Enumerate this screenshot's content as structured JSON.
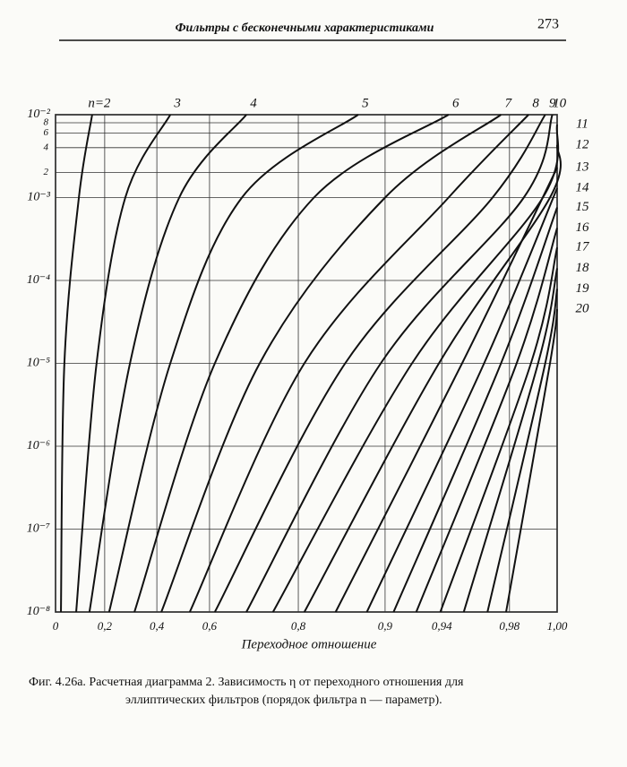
{
  "header": {
    "title": "Фильтры с бесконечными характеристиками",
    "page": "273"
  },
  "caption": [
    "Фиг. 4.26а. Расчетная диаграмма 2. Зависимость η от переходного отношения для",
    "эллиптических фильтров (порядок фильтра n — параметр)."
  ],
  "chart_data": {
    "type": "line",
    "xlabel": "Переходное отношение",
    "color": "#111111",
    "grid": true,
    "ylog": true,
    "xlim": [
      0,
      1
    ],
    "xticks": [
      0,
      {
        "value": 0.2,
        "label": "0,2"
      },
      {
        "value": 0.4,
        "label": "0,4"
      },
      {
        "value": 0.6,
        "label": "0,6"
      },
      {
        "value": 0.8,
        "label": "0,8"
      },
      {
        "value": 0.9,
        "label": "0,9"
      },
      {
        "value": 0.94,
        "label": "0,94"
      },
      {
        "value": 0.98,
        "label": "0,98"
      },
      {
        "value": 1,
        "label": "1,00"
      }
    ],
    "ylim": [
      1e-08,
      0.01
    ],
    "yticks": [
      {
        "value": 1e-08,
        "label": "10⁻⁸"
      },
      {
        "value": 1e-07,
        "label": "10⁻⁷"
      },
      {
        "value": 1e-06,
        "label": "10⁻⁶"
      },
      {
        "value": 1e-05,
        "label": "10⁻⁵"
      },
      {
        "value": 0.0001,
        "label": "10⁻⁴"
      },
      {
        "value": 0.001,
        "label": "10⁻³"
      },
      {
        "value": 0.002,
        "label": "2"
      },
      {
        "value": 0.004,
        "label": "4"
      },
      {
        "value": 0.006,
        "label": "6"
      },
      {
        "value": 0.008,
        "label": "8"
      },
      {
        "value": 0.01,
        "label": "10⁻²"
      }
    ],
    "series": [
      {
        "name": "n=2",
        "x": [
          0.022,
          0.036,
          0.095,
          0.149
        ],
        "values": [
          1e-08,
          1e-05,
          0.001,
          0.01
        ]
      },
      {
        "name": "3",
        "x": [
          0.084,
          0.167,
          0.279,
          0.451
        ],
        "values": [
          1e-08,
          1e-05,
          0.001,
          0.01
        ]
      },
      {
        "name": "4",
        "x": [
          0.138,
          0.297,
          0.485,
          0.683
        ],
        "values": [
          1e-08,
          1e-05,
          0.001,
          0.01
        ]
      },
      {
        "name": "5",
        "x": [
          0.217,
          0.451,
          0.673,
          0.869
        ],
        "values": [
          1e-08,
          1e-05,
          0.001,
          0.01
        ]
      },
      {
        "name": "6",
        "x": [
          0.314,
          0.612,
          0.818,
          0.944
        ],
        "values": [
          1e-08,
          1e-05,
          0.001,
          0.01
        ]
      },
      {
        "name": "7",
        "x": [
          0.417,
          0.713,
          0.9,
          0.975
        ],
        "values": [
          1e-08,
          1e-05,
          0.001,
          0.01
        ]
      },
      {
        "name": "8",
        "x": [
          0.525,
          0.807,
          0.944,
          0.988
        ],
        "values": [
          1e-08,
          1e-05,
          0.001,
          0.01
        ]
      },
      {
        "name": "9",
        "x": [
          0.612,
          0.854,
          0.97,
          0.995
        ],
        "values": [
          1e-08,
          1e-05,
          0.001,
          0.01
        ]
      },
      {
        "name": "10",
        "x": [
          0.683,
          0.895,
          0.986,
          0.998
        ],
        "values": [
          1e-08,
          1e-05,
          0.001,
          0.01
        ]
      },
      {
        "name": "11",
        "x": [
          0.743,
          0.919,
          0.994,
          1
        ],
        "values": [
          1e-08,
          1e-05,
          0.001,
          0.0076
        ]
      },
      {
        "name": "12",
        "x": [
          0.807,
          0.938,
          0.997,
          1
        ],
        "values": [
          1e-08,
          1e-05,
          0.001,
          0.0043
        ]
      },
      {
        "name": "13",
        "x": [
          0.843,
          0.952,
          1
        ],
        "values": [
          1e-08,
          1e-05,
          0.0023
        ]
      },
      {
        "name": "14",
        "x": [
          0.879,
          0.965,
          1
        ],
        "values": [
          1e-08,
          1e-05,
          0.0013
        ]
      },
      {
        "name": "15",
        "x": [
          0.906,
          0.975,
          1
        ],
        "values": [
          1e-08,
          1e-05,
          0.00076
        ]
      },
      {
        "name": "16",
        "x": [
          0.922,
          0.983,
          1
        ],
        "values": [
          1e-08,
          1e-05,
          0.00043
        ]
      },
      {
        "name": "17",
        "x": [
          0.939,
          0.989,
          1
        ],
        "values": [
          1e-08,
          1e-05,
          0.00025
        ]
      },
      {
        "name": "18",
        "x": [
          0.953,
          0.992,
          1
        ],
        "values": [
          1e-08,
          1e-05,
          0.00014
        ]
      },
      {
        "name": "19",
        "x": [
          0.967,
          0.995,
          1
        ],
        "values": [
          1e-08,
          1e-05,
          7.9e-05
        ]
      },
      {
        "name": "20",
        "x": [
          0.978,
          0.997,
          1
        ],
        "values": [
          1e-08,
          1e-05,
          4.5e-05
        ]
      }
    ]
  }
}
